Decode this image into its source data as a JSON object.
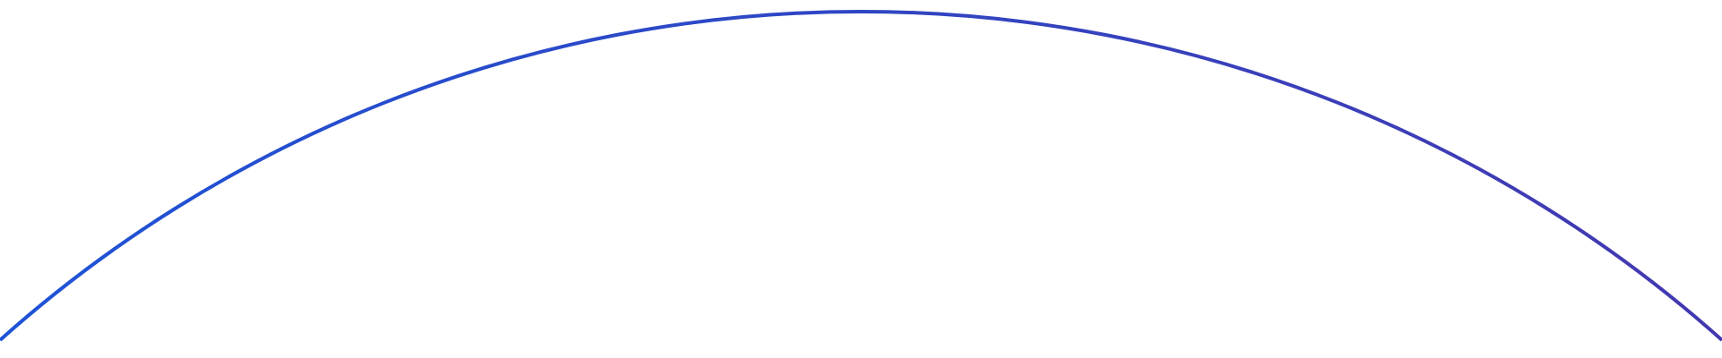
{
  "decoration": {
    "arc": {
      "color_start": "#1e53d6",
      "color_end": "#4338b0"
    }
  }
}
